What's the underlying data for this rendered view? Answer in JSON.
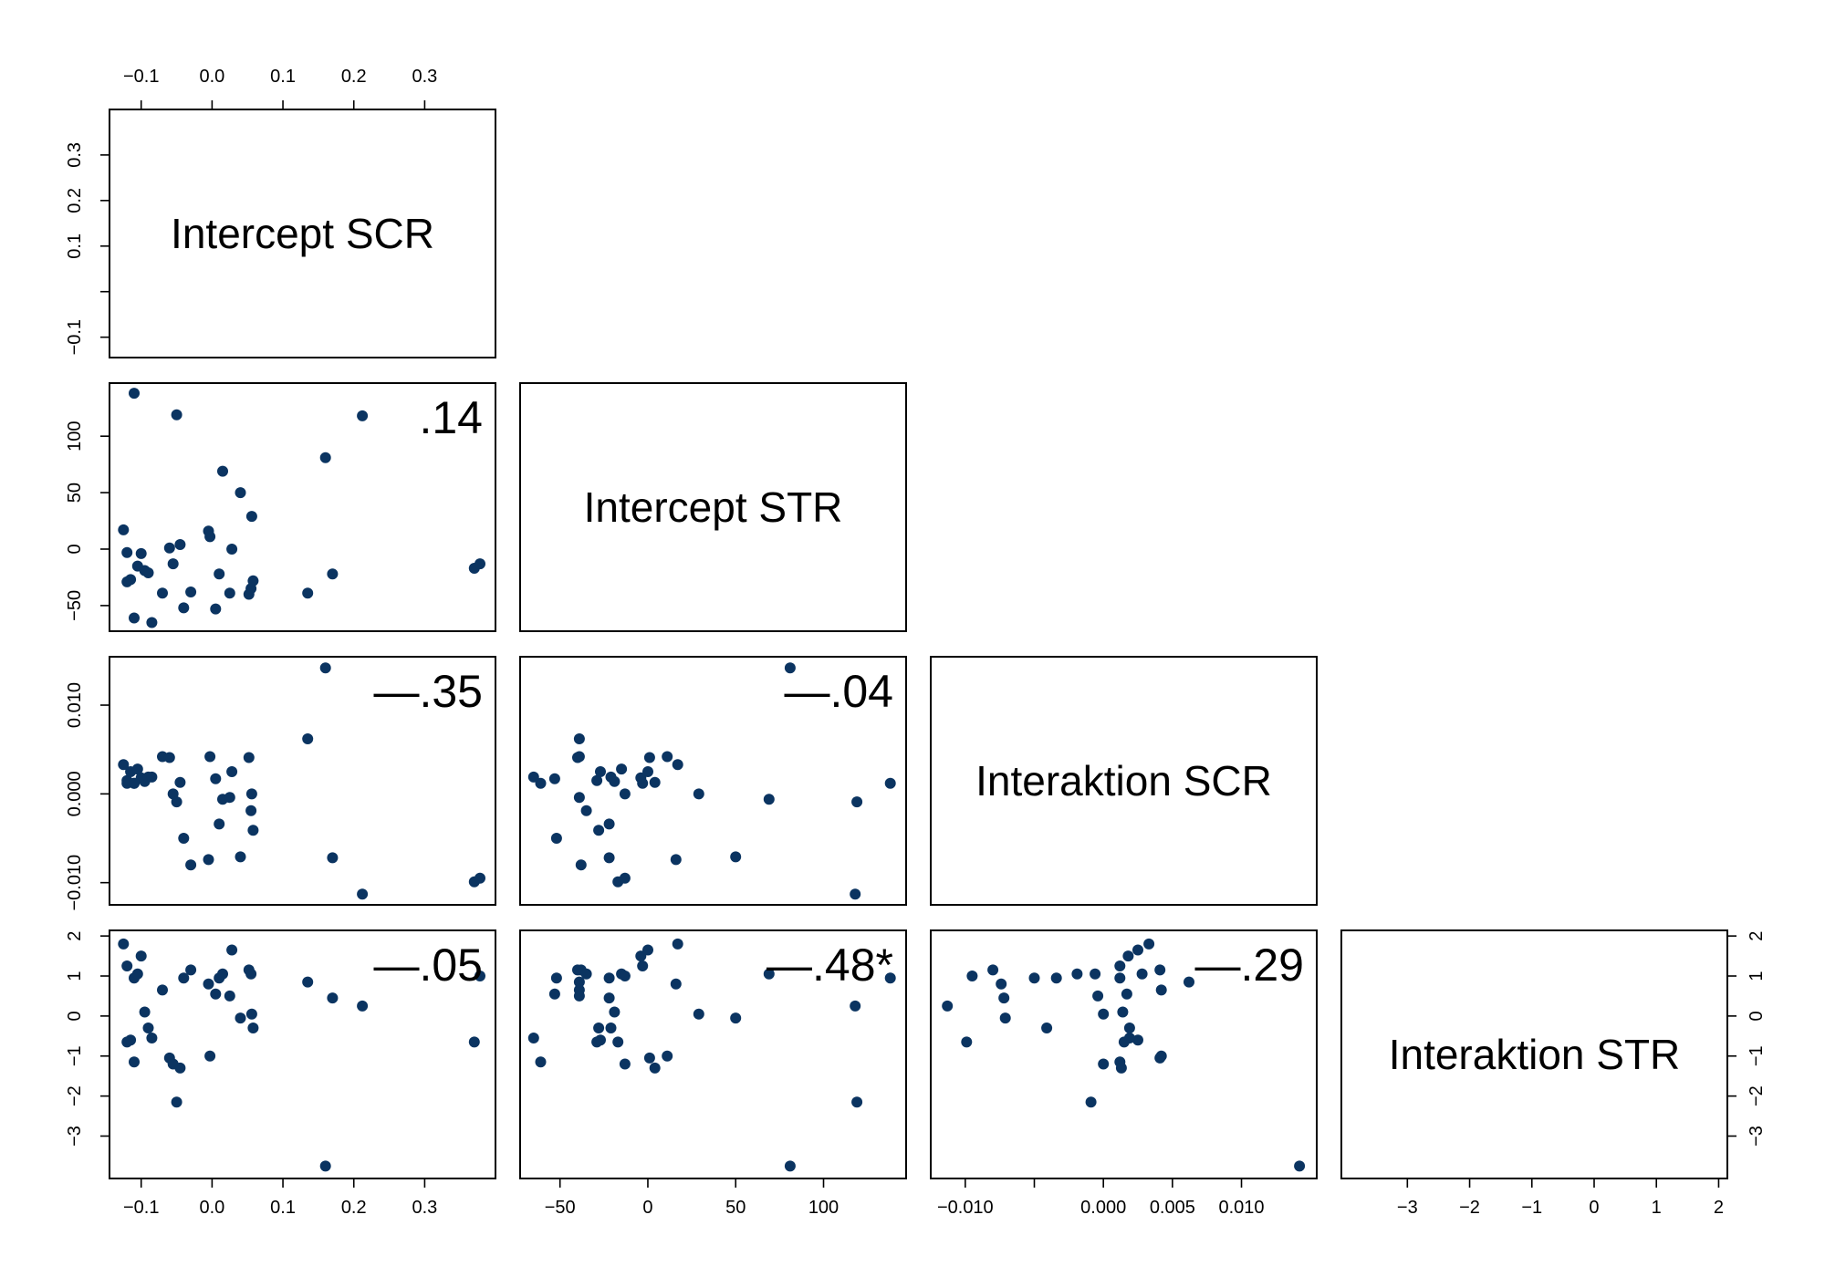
{
  "chart_data": {
    "type": "scatter-matrix",
    "variables": [
      {
        "name": "Intercept SCR",
        "ticks": [
          -0.1,
          0.0,
          0.1,
          0.2,
          0.3
        ],
        "tick_labels": [
          "−0.1",
          "0.0",
          "0.1",
          "0.2",
          "0.3"
        ]
      },
      {
        "name": "Intercept STR",
        "ticks": [
          -50,
          0,
          50,
          100
        ],
        "tick_labels": [
          "−50",
          "0",
          "50",
          "100"
        ]
      },
      {
        "name": "Interaktion SCR",
        "ticks": [
          -0.01,
          0.0,
          0.005,
          0.01
        ],
        "tick_labels": [
          "−0.010",
          "0.000",
          "0.005",
          "0.010"
        ]
      },
      {
        "name": "Interaktion STR",
        "ticks": [
          -3,
          -2,
          -1,
          0,
          1,
          2
        ],
        "tick_labels": [
          "−3",
          "−2",
          "−1",
          "0",
          "1",
          "2"
        ]
      }
    ],
    "left_axis_ticks": [
      {
        "ticks": [
          -0.1,
          0.1,
          0.2,
          0.3
        ],
        "tick_labels": [
          "−0.1",
          "0.1",
          "0.2",
          "0.3"
        ]
      },
      {
        "ticks": [
          -50,
          0,
          50,
          100
        ],
        "tick_labels": [
          "−50",
          "0",
          "50",
          "100"
        ]
      },
      {
        "ticks": [
          -0.01,
          0.0,
          0.01
        ],
        "tick_labels": [
          "−0.010",
          "0.000",
          "0.010"
        ]
      },
      {
        "ticks": [
          -3,
          -2,
          -1,
          0,
          1,
          2
        ],
        "tick_labels": [
          "−3",
          "−2",
          "−1",
          "0",
          "1",
          "2"
        ]
      }
    ],
    "correlations": [
      {
        "row": 1,
        "col": 0,
        "label": ".14"
      },
      {
        "row": 2,
        "col": 0,
        "label": "—.35"
      },
      {
        "row": 2,
        "col": 1,
        "label": "—.04"
      },
      {
        "row": 3,
        "col": 0,
        "label": "—.05"
      },
      {
        "row": 3,
        "col": 1,
        "label": "—.48*"
      },
      {
        "row": 3,
        "col": 2,
        "label": "—.29"
      }
    ],
    "observations": [
      [
        -0.125,
        17.0,
        0.0033,
        1.8
      ],
      [
        -0.12,
        -3.0,
        0.0012,
        1.25
      ],
      [
        -0.12,
        -29.0,
        0.0015,
        -0.65
      ],
      [
        -0.115,
        -27.0,
        0.0025,
        -0.6
      ],
      [
        -0.11,
        -61.0,
        0.0012,
        -1.15
      ],
      [
        -0.11,
        138.0,
        0.0012,
        0.95
      ],
      [
        -0.105,
        -15.0,
        0.0028,
        1.05
      ],
      [
        -0.1,
        -4.0,
        0.0018,
        1.5
      ],
      [
        -0.095,
        -19.0,
        0.0014,
        0.1
      ],
      [
        -0.09,
        -21.0,
        0.0019,
        -0.3
      ],
      [
        -0.085,
        -65.0,
        0.0019,
        -0.55
      ],
      [
        -0.07,
        -39.0,
        0.0042,
        0.65
      ],
      [
        -0.06,
        1.0,
        0.0041,
        -1.05
      ],
      [
        -0.055,
        -13.0,
        0.0,
        -1.2
      ],
      [
        -0.05,
        119.0,
        -0.0009,
        -2.15
      ],
      [
        -0.045,
        4.0,
        0.0013,
        -1.3
      ],
      [
        -0.04,
        -52.0,
        -0.005,
        0.95
      ],
      [
        -0.03,
        -38.0,
        -0.008,
        1.15
      ],
      [
        -0.005,
        16.0,
        -0.0074,
        0.8
      ],
      [
        -0.003,
        11.0,
        0.0042,
        -1.0
      ],
      [
        0.005,
        -53.0,
        0.0017,
        0.55
      ],
      [
        0.01,
        -22.0,
        -0.0034,
        0.95
      ],
      [
        0.015,
        69.0,
        -0.0006,
        1.05
      ],
      [
        0.025,
        -39.0,
        -0.0004,
        0.5
      ],
      [
        0.028,
        0.0,
        0.0025,
        1.65
      ],
      [
        0.04,
        50.0,
        -0.0071,
        -0.05
      ],
      [
        0.052,
        -40.0,
        0.0041,
        1.15
      ],
      [
        0.055,
        -35.0,
        -0.0019,
        1.05
      ],
      [
        0.056,
        29.0,
        0.0,
        0.05
      ],
      [
        0.058,
        -28.0,
        -0.0041,
        -0.3
      ],
      [
        0.135,
        -39.0,
        0.0062,
        0.85
      ],
      [
        0.16,
        81.0,
        0.0142,
        -3.75
      ],
      [
        0.17,
        -22.0,
        -0.0072,
        0.45
      ],
      [
        0.212,
        118.0,
        -0.0113,
        0.25
      ],
      [
        0.37,
        -17.0,
        -0.0099,
        -0.65
      ],
      [
        0.378,
        -13.0,
        -0.0095,
        1.0
      ]
    ]
  }
}
